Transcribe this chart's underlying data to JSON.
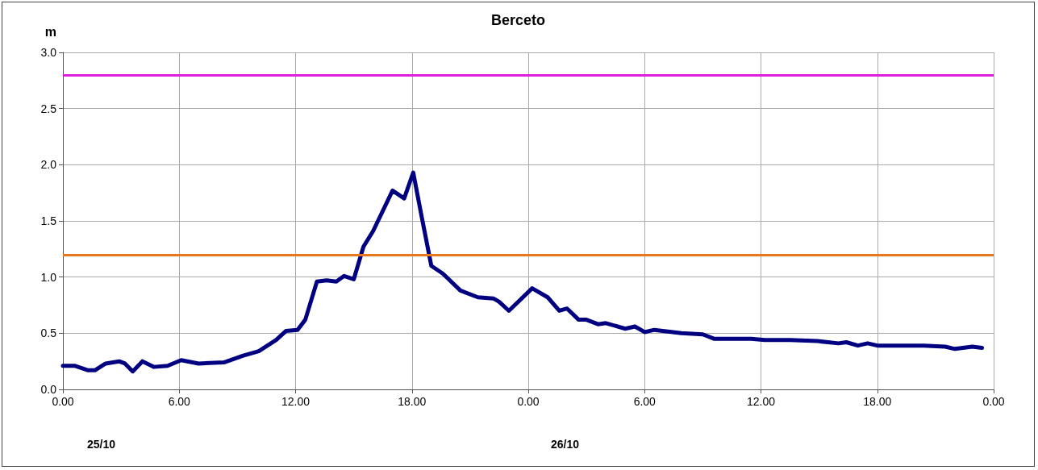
{
  "chart_data": {
    "type": "line",
    "title": "Berceto",
    "ylabel": "m",
    "annotations": [
      "25/10",
      "26/10"
    ],
    "xlim": [
      "--10-25T00:00",
      "--10-27T00:00"
    ],
    "xticks": [
      {
        "value": "--10-25T00:00",
        "label": "0.00"
      },
      {
        "value": "--10-25T06:00",
        "label": "6.00"
      },
      {
        "value": "--10-25T12:00",
        "label": "12.00"
      },
      {
        "value": "--10-25T18:00",
        "label": "18.00"
      },
      {
        "value": "--10-26T00:00",
        "label": "0.00"
      },
      {
        "value": "--10-26T06:00",
        "label": "6.00"
      },
      {
        "value": "--10-26T12:00",
        "label": "12.00"
      },
      {
        "value": "--10-26T18:00",
        "label": "18.00"
      },
      {
        "value": "--10-27T00:00",
        "label": "0.00"
      }
    ],
    "ylim": [
      0,
      3
    ],
    "yticks": [
      {
        "value": 0,
        "label": "0.0"
      },
      {
        "value": 0.5,
        "label": "0.5"
      },
      {
        "value": 1,
        "label": "1.0"
      },
      {
        "value": 1.5,
        "label": "1.5"
      },
      {
        "value": 2,
        "label": "2.0"
      },
      {
        "value": 2.5,
        "label": "2.5"
      },
      {
        "value": 3,
        "label": "3.0"
      }
    ],
    "grid": true,
    "marker": "none",
    "line_style": "solid",
    "ref_lines": [
      {
        "axis": "y",
        "value": 2.8,
        "label": null,
        "color": "#e020e0"
      },
      {
        "axis": "y",
        "value": 1.2,
        "label": null,
        "color": "#e87820"
      }
    ],
    "series": [
      {
        "color": "#000080",
        "x": [
          "--10-25T00:00",
          "--10-25T00:36",
          "--10-25T01:18",
          "--10-25T01:39",
          "--10-25T02:12",
          "--10-25T02:54",
          "--10-25T03:12",
          "--10-25T03:36",
          "--10-25T04:06",
          "--10-25T04:42",
          "--10-25T05:24",
          "--10-25T06:06",
          "--10-25T07:00",
          "--10-25T08:18",
          "--10-25T09:18",
          "--10-25T10:06",
          "--10-25T11:00",
          "--10-25T11:30",
          "--10-25T12:06",
          "--10-25T12:30",
          "--10-25T13:06",
          "--10-25T13:36",
          "--10-25T14:06",
          "--10-25T14:30",
          "--10-25T15:00",
          "--10-25T15:30",
          "--10-25T16:00",
          "--10-25T17:00",
          "--10-25T17:36",
          "--10-25T18:04",
          "--10-25T18:30",
          "--10-25T19:00",
          "--10-25T19:36",
          "--10-25T20:30",
          "--10-25T21:24",
          "--10-25T22:12",
          "--10-25T22:30",
          "--10-25T23:00",
          "--10-26T00:12",
          "--10-26T01:00",
          "--10-26T01:36",
          "--10-26T02:00",
          "--10-26T02:36",
          "--10-26T03:00",
          "--10-26T03:36",
          "--10-26T04:00",
          "--10-26T05:00",
          "--10-26T05:30",
          "--10-26T06:00",
          "--10-26T06:30",
          "--10-26T07:54",
          "--10-26T09:00",
          "--10-26T09:36",
          "--10-26T11:30",
          "--10-26T12:12",
          "--10-26T13:30",
          "--10-26T14:54",
          "--10-26T16:00",
          "--10-26T16:24",
          "--10-26T17:00",
          "--10-26T17:30",
          "--10-26T18:00",
          "--10-26T20:24",
          "--10-26T21:30",
          "--10-26T22:00",
          "--10-26T22:54",
          "--10-26T23:24"
        ],
        "values": [
          0.21,
          0.21,
          0.17,
          0.17,
          0.23,
          0.25,
          0.23,
          0.16,
          0.25,
          0.2,
          0.21,
          0.26,
          0.23,
          0.24,
          0.3,
          0.34,
          0.44,
          0.52,
          0.53,
          0.62,
          0.96,
          0.97,
          0.96,
          1.01,
          0.98,
          1.27,
          1.41,
          1.77,
          1.7,
          1.93,
          1.54,
          1.1,
          1.03,
          0.88,
          0.82,
          0.81,
          0.78,
          0.7,
          0.9,
          0.82,
          0.7,
          0.72,
          0.62,
          0.62,
          0.58,
          0.59,
          0.54,
          0.56,
          0.51,
          0.53,
          0.5,
          0.49,
          0.45,
          0.45,
          0.44,
          0.44,
          0.43,
          0.41,
          0.42,
          0.39,
          0.41,
          0.39,
          0.39,
          0.38,
          0.36,
          0.38,
          0.37
        ]
      }
    ]
  }
}
